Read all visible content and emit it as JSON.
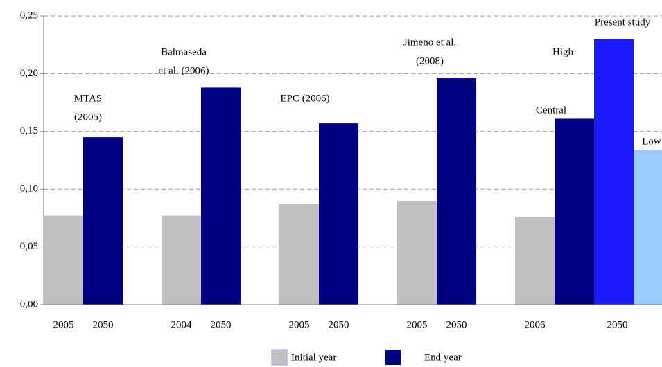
{
  "chart_data": {
    "type": "bar",
    "ylim": [
      0,
      0.25
    ],
    "yticks": [
      {
        "value": 0,
        "label": "0,00"
      },
      {
        "value": 0.05,
        "label": "0,05"
      },
      {
        "value": 0.1,
        "label": "0,10"
      },
      {
        "value": 0.15,
        "label": "0,15"
      },
      {
        "value": 0.2,
        "label": "0,20"
      },
      {
        "value": 0.25,
        "label": "0,25"
      }
    ],
    "grid": true,
    "groups": [
      {
        "label": [
          "MTAS",
          "(2005)"
        ],
        "years": [
          "2005",
          "2050"
        ]
      },
      {
        "label": [
          "Balmaseda",
          "et al. (2006)"
        ],
        "years": [
          "2004",
          "2050"
        ]
      },
      {
        "label": [
          "EPC (2006)"
        ],
        "years": [
          "2005",
          "2050"
        ]
      },
      {
        "label": [
          "Jimeno et al.",
          "(2008)"
        ],
        "years": [
          "2005",
          "2050"
        ]
      },
      {
        "label": [
          "Present study"
        ],
        "years": [
          "2006",
          "2050"
        ]
      }
    ],
    "series": [
      {
        "name": "Initial year",
        "color": "#c0c0c0",
        "values": [
          0.077,
          0.077,
          0.087,
          0.09,
          0.076
        ]
      },
      {
        "name": "End year",
        "color": "#000080",
        "values": [
          0.145,
          0.188,
          0.157,
          0.196,
          0.161
        ]
      }
    ],
    "central_label": "Central",
    "extra_bars": [
      {
        "label": "High",
        "color": "#1a1aff",
        "value": 0.23
      },
      {
        "label": "Low",
        "color": "#99ccff",
        "value": 0.134
      }
    ]
  }
}
